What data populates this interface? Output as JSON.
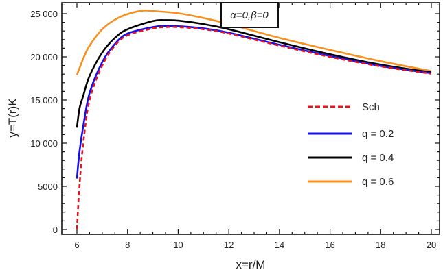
{
  "chart_data": {
    "type": "line",
    "title": "",
    "xlabel": "x=r/M",
    "ylabel": "y=T(r)K",
    "xlim": [
      5.5,
      20.3
    ],
    "ylim": [
      -500,
      26500
    ],
    "xticks": [
      6,
      8,
      10,
      12,
      14,
      16,
      18,
      20
    ],
    "yticks": [
      0,
      5000,
      10000,
      15000,
      20000,
      25000
    ],
    "ytick_labels": [
      "0",
      "5000",
      "10 000",
      "15 000",
      "20 000",
      "25 000"
    ],
    "grid": false,
    "legend_position": "right",
    "annotation": "α=0,β=0",
    "series": [
      {
        "name": "Sch",
        "color": "#e8141c",
        "dashed": true,
        "x": [
          6,
          6.1,
          6.25,
          6.5,
          7,
          7.5,
          8,
          9,
          9.5,
          10,
          11,
          12,
          14,
          16,
          18,
          20
        ],
        "y": [
          0,
          5000,
          10000,
          15000,
          19000,
          21300,
          22500,
          23300,
          23450,
          23450,
          23200,
          22700,
          21300,
          20000,
          18900,
          18050
        ]
      },
      {
        "name": "q = 0.2",
        "color": "#1010f0",
        "dashed": false,
        "x": [
          6,
          6.1,
          6.25,
          6.5,
          7,
          7.5,
          8,
          9,
          9.5,
          10,
          11,
          12,
          14,
          16,
          18,
          20
        ],
        "y": [
          5900,
          9000,
          12000,
          15800,
          19400,
          21500,
          22700,
          23450,
          23600,
          23550,
          23300,
          22800,
          21400,
          20100,
          18950,
          18100
        ]
      },
      {
        "name": "q = 0.4",
        "color": "#000000",
        "dashed": false,
        "x": [
          6,
          6.1,
          6.25,
          6.5,
          7,
          7.5,
          8,
          9,
          9.5,
          10,
          11,
          12,
          14,
          16,
          18,
          20
        ],
        "y": [
          11800,
          14000,
          15500,
          17800,
          20500,
          22200,
          23200,
          24150,
          24250,
          24200,
          23800,
          23200,
          21700,
          20300,
          19100,
          18200
        ]
      },
      {
        "name": "q = 0.6",
        "color": "#f7901e",
        "dashed": false,
        "x": [
          6,
          6.25,
          6.5,
          7,
          7.5,
          8,
          8.6,
          9,
          10,
          11,
          12,
          14,
          16,
          18,
          20
        ],
        "y": [
          17900,
          19800,
          21300,
          23200,
          24300,
          24950,
          25350,
          25300,
          25050,
          24500,
          23800,
          22200,
          20800,
          19500,
          18350
        ]
      }
    ]
  }
}
